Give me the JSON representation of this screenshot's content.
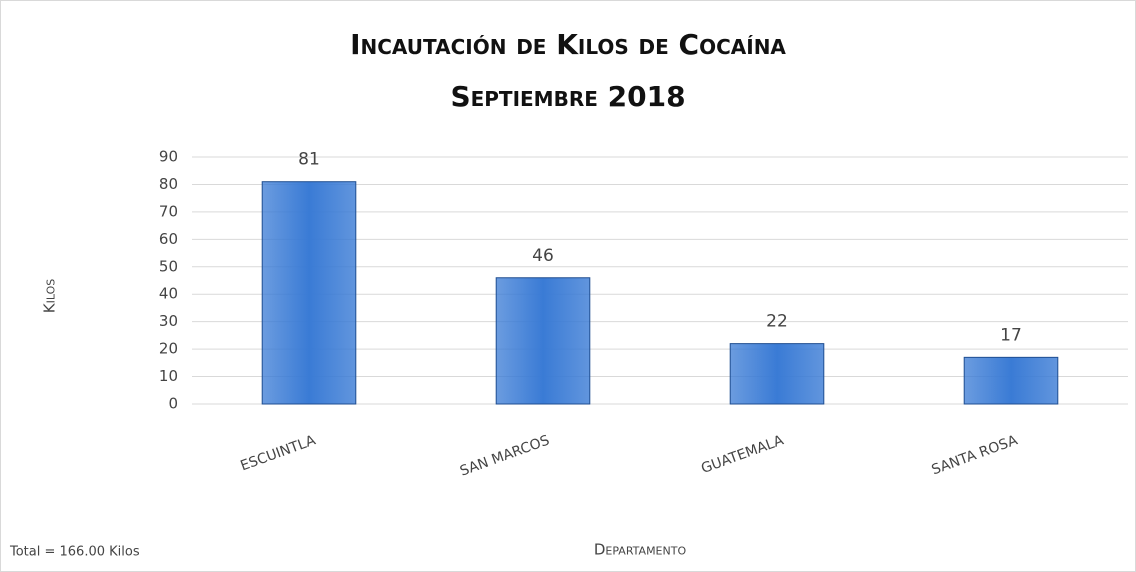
{
  "chart_data": {
    "type": "bar",
    "title": "Incautación de Kilos de Cocaína",
    "subtitle": "Septiembre 2018",
    "y_label": "Kilos",
    "x_label": "Departamento",
    "annotation": "Total = 166.00 Kilos",
    "categories": [
      "ESCUINTLA",
      "SAN MARCOS",
      "GUATEMALA",
      "SANTA ROSA"
    ],
    "values": [
      81,
      46,
      22,
      17
    ],
    "color": "#3a7bd5",
    "ylim": [
      0,
      90
    ],
    "yticks": [
      0,
      10,
      20,
      30,
      40,
      50,
      60,
      70,
      80,
      90
    ],
    "grid": true
  }
}
